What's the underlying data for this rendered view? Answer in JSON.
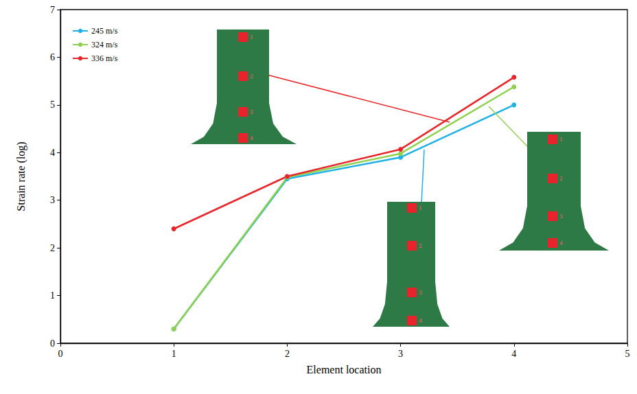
{
  "chart_data": {
    "type": "line",
    "x_label": "Element location",
    "y_label": "Strain rate (log)",
    "x": [
      1,
      2,
      3,
      4
    ],
    "series": [
      {
        "name": "245 m/s",
        "color": "#1fb1e6",
        "values": [
          0.3,
          3.45,
          3.9,
          5.0
        ],
        "marker": "circle"
      },
      {
        "name": "324 m/s",
        "color": "#8fd14f",
        "values": [
          0.3,
          3.48,
          3.98,
          5.38
        ],
        "marker": "circle"
      },
      {
        "name": "336 m/s",
        "color": "#e8262a",
        "values": [
          2.4,
          3.5,
          4.07,
          5.58
        ],
        "marker": "circle"
      }
    ],
    "xlim": [
      0,
      5
    ],
    "xticks": [
      0,
      1,
      2,
      3,
      4,
      5
    ],
    "ylim": [
      0,
      7
    ],
    "yticks": [
      0,
      1,
      2,
      3,
      4,
      5,
      6,
      7
    ],
    "grid": false,
    "legend": "upper left",
    "annotations": [
      "1",
      "2",
      "3",
      "4"
    ]
  }
}
